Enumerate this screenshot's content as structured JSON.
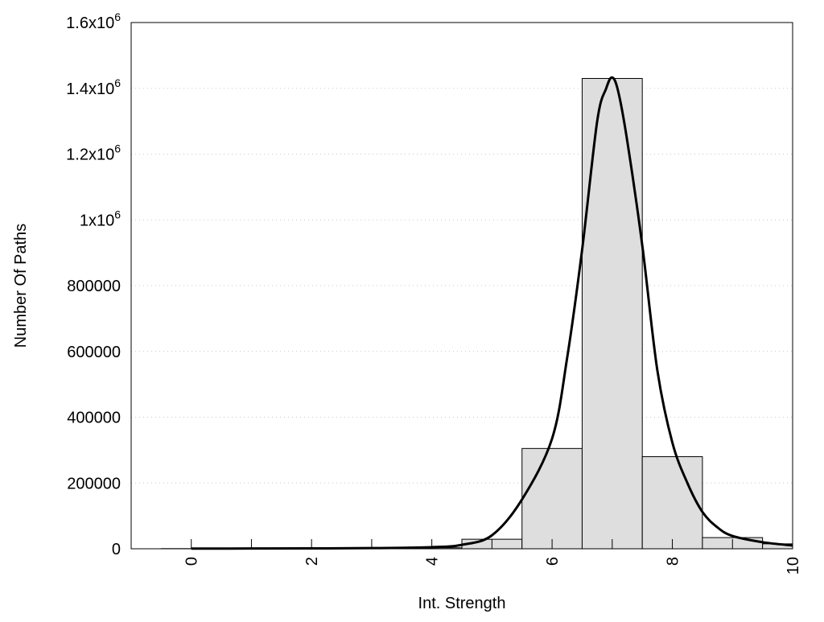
{
  "chart_data": {
    "type": "bar",
    "title": "",
    "xlabel": "Int. Strength",
    "ylabel": "Number Of Paths",
    "xlim": [
      -1,
      10
    ],
    "ylim": [
      0,
      1600000
    ],
    "grid": "horizontal dotted",
    "x_ticks": [
      {
        "value": 0,
        "label": "0"
      },
      {
        "value": 2,
        "label": "2"
      },
      {
        "value": 4,
        "label": "4"
      },
      {
        "value": 6,
        "label": "6"
      },
      {
        "value": 8,
        "label": "8"
      },
      {
        "value": 10,
        "label": "10"
      }
    ],
    "y_ticks": [
      {
        "value": 0,
        "label": "0"
      },
      {
        "value": 200000,
        "label": "200000"
      },
      {
        "value": 400000,
        "label": "400000"
      },
      {
        "value": 600000,
        "label": "600000"
      },
      {
        "value": 800000,
        "label": "800000"
      },
      {
        "value": 1000000,
        "base": "1x10",
        "exp": "6"
      },
      {
        "value": 1200000,
        "base": "1.2x10",
        "exp": "6"
      },
      {
        "value": 1400000,
        "base": "1.4x10",
        "exp": "6"
      },
      {
        "value": 1600000,
        "base": "1.6x10",
        "exp": "6"
      }
    ],
    "bars": {
      "name": "histogram",
      "x": [
        0,
        1,
        2,
        3,
        4,
        5,
        6,
        7,
        8,
        9,
        10
      ],
      "values": [
        500,
        500,
        500,
        800,
        3000,
        29000,
        305000,
        1430000,
        280000,
        34000,
        15000
      ],
      "color": "#dedede"
    },
    "fit_curve": {
      "name": "fit",
      "x": [
        0,
        1,
        2,
        3,
        4,
        4.5,
        5,
        5.5,
        6,
        6.25,
        6.5,
        6.75,
        6.9,
        7,
        7.1,
        7.25,
        7.5,
        7.75,
        8,
        8.25,
        8.5,
        8.75,
        9,
        9.5,
        10
      ],
      "y": [
        500,
        800,
        1200,
        2000,
        5000,
        12000,
        41000,
        150000,
        335000,
        580000,
        910000,
        1300000,
        1400000,
        1433000,
        1390000,
        1240000,
        922000,
        543000,
        323000,
        200000,
        112000,
        65000,
        39000,
        20000,
        10000
      ],
      "color": "#000000"
    }
  }
}
